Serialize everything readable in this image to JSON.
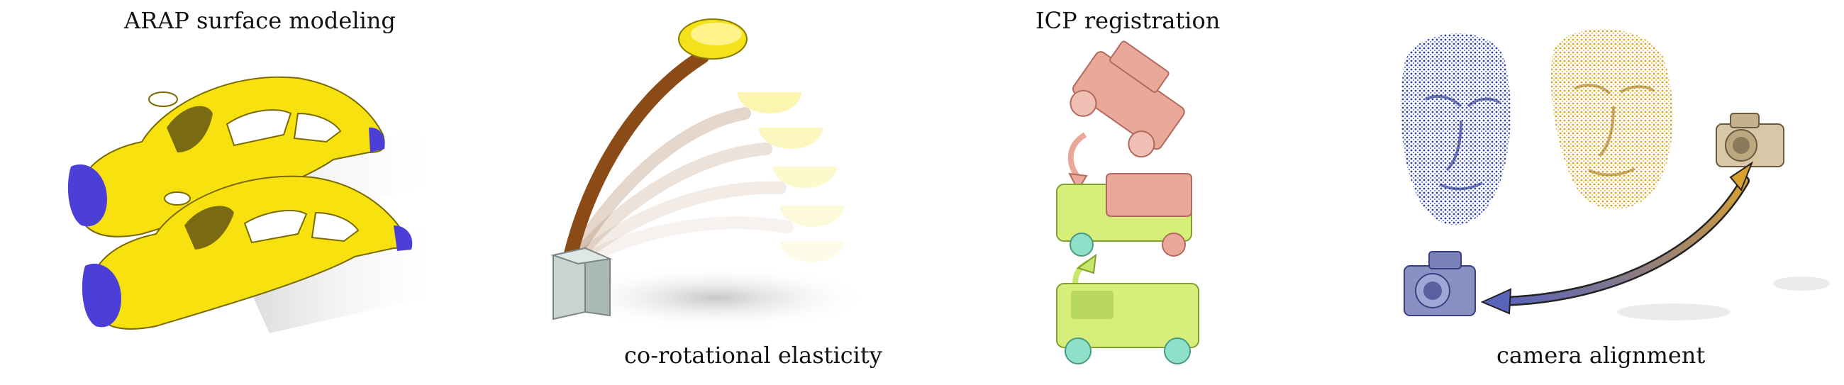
{
  "panels": [
    {
      "id": "arap",
      "caption": "ARAP surface modeling"
    },
    {
      "id": "corot",
      "caption": "co-rotational elasticity"
    },
    {
      "id": "icp",
      "caption": "ICP registration"
    },
    {
      "id": "camera",
      "caption": "camera alignment"
    }
  ],
  "colors": {
    "car_body": "#f7e10f",
    "car_handle": "#4b3fd8",
    "beam": "#8a4b17",
    "bowl": "#f3e21a",
    "jeep_target": "#e9a89a",
    "jeep_source": "#d7ef7a",
    "jeep_trim": "#8fe0c8",
    "cloud_blue": "#2c3fa8",
    "cloud_gold": "#d8a11f",
    "camera_blue": "#8a90c4",
    "camera_beige": "#d9c8a8"
  }
}
